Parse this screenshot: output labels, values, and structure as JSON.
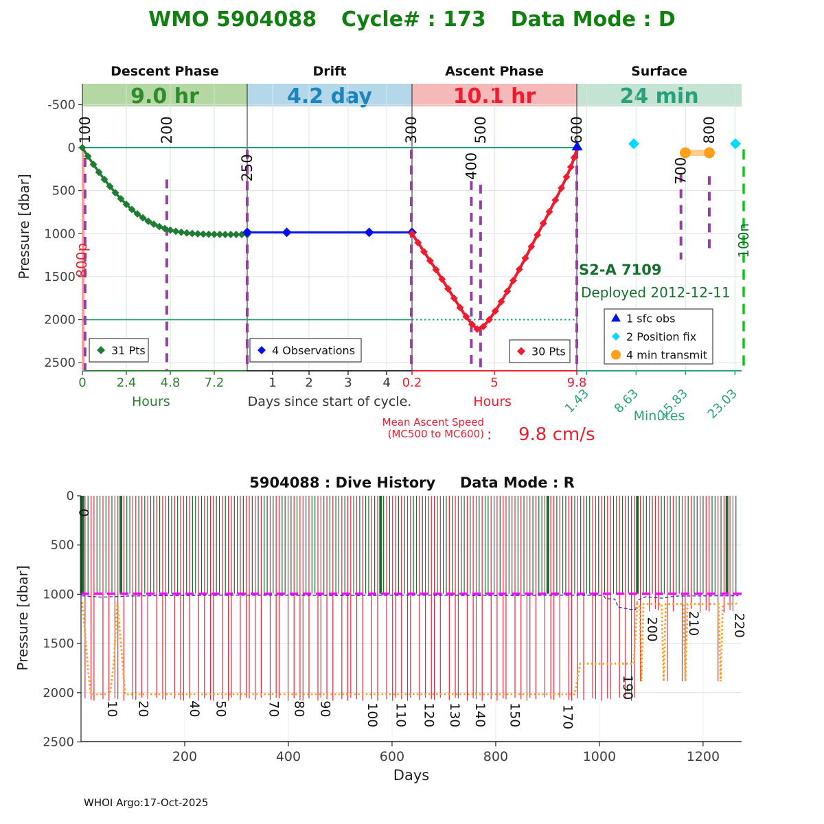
{
  "page": {
    "footer": "WHOI Argo:17-Oct-2025"
  },
  "colors": {
    "title_green": "#118011",
    "annotation_green": "#156f2e",
    "series_green": "#1e7d32",
    "series_blue": "#0010ee",
    "series_red": "#ee1c2e",
    "teal": "#27a27a",
    "teal_line": "#1a9e77",
    "purple": "#9440a0",
    "pink": "#ff9b9b",
    "orange": "#ff9f1c",
    "orange_band": "#ffd089",
    "cyan": "#00dcff",
    "magenta": "#ff00ff",
    "bright_green": "#00cc11",
    "grid": "#e0e0e0",
    "axis_text": "#404040",
    "hist_green": "#1a6b32",
    "hist_red": "#e8243c",
    "hist_blue": "#2233bb"
  },
  "chart_data": [
    {
      "type": "line",
      "title": "WMO 5904088   Cycle# : 173   Data Mode : D",
      "ylabel": "Pressure [dbar]",
      "ylim": [
        -750,
        2600
      ],
      "yticks": [
        -500,
        0,
        500,
        1000,
        1500,
        2000,
        2500
      ],
      "phases": [
        {
          "name": "Descent Phase",
          "duration": "9.0 hr",
          "band_color": "#b5d7a3",
          "text_color": "#2e8b2e",
          "axis_color": "#2e7d32",
          "grid_color": "#cfe6cf",
          "unit": "Hours",
          "unit_f": 0.104,
          "ticks": [
            {
              "f": 0,
              "l": "0"
            },
            {
              "f": 0.0667,
              "l": "2.4"
            },
            {
              "f": 0.1333,
              "l": "4.8"
            },
            {
              "f": 0.2,
              "l": "7.2"
            }
          ]
        },
        {
          "name": "Drift",
          "duration": "4.2 day",
          "band_color": "#b4d8ea",
          "text_color": "#1d85bd",
          "axis_color": "#333333",
          "grid_color": "#e4e4e4",
          "unit": "Days since start of cycle.",
          "unit_f": 0.375,
          "unit_color": "#333333",
          "ticks": [
            {
              "f": 0.2885,
              "l": "1"
            },
            {
              "f": 0.3438,
              "l": "2"
            },
            {
              "f": 0.4031,
              "l": "3"
            },
            {
              "f": 0.4615,
              "l": "4"
            }
          ]
        },
        {
          "name": "Ascent Phase",
          "duration": "10.1 hr",
          "band_color": "#f6b9b9",
          "text_color": "#ee1c2e",
          "axis_color": "#ee1c2e",
          "grid_color": "#f8cfcf",
          "unit": "Hours",
          "unit_f": 0.622,
          "ticks": [
            {
              "f": 0.5,
              "l": "0.2"
            },
            {
              "f": 0.625,
              "l": "5"
            },
            {
              "f": 0.75,
              "l": "9.8"
            }
          ]
        },
        {
          "name": "Surface",
          "duration": "24 min",
          "band_color": "#c4e3d2",
          "text_color": "#27a27a",
          "axis_color": "#27a27a",
          "grid_color": "#d2eadd",
          "unit": "Minutes",
          "unit_f": 0.875,
          "unit_y": 612,
          "rotate_ticks": true,
          "ticks": [
            {
              "f": 0.7649,
              "l": "1.43"
            },
            {
              "f": 0.8399,
              "l": "8.63"
            },
            {
              "f": 0.9149,
              "l": "15.83"
            },
            {
              "f": 0.9899,
              "l": "23.03"
            }
          ]
        }
      ],
      "series": {
        "descent": {
          "legend": "31 Pts",
          "color": "#1e7d32",
          "t_range": [
            0,
            9
          ],
          "f_range": [
            0,
            0.25
          ],
          "t": [
            0,
            0.3,
            0.6,
            0.9,
            1.2,
            1.5,
            1.8,
            2.1,
            2.4,
            2.7,
            3,
            3.3,
            3.6,
            3.9,
            4.2,
            4.5,
            4.8,
            5.1,
            5.4,
            5.7,
            6,
            6.3,
            6.6,
            6.9,
            7.2,
            7.5,
            7.8,
            8.1,
            8.4,
            8.7,
            9
          ],
          "p": [
            0,
            100,
            195,
            285,
            370,
            450,
            525,
            595,
            660,
            718,
            770,
            816,
            856,
            890,
            918,
            941,
            959,
            973,
            984,
            992,
            998,
            1002,
            1005,
            1007,
            1008,
            1009,
            1010,
            1010,
            1010,
            1010,
            1010
          ]
        },
        "drift": {
          "legend": "4 Observations",
          "color": "#0010ee",
          "f": [
            0.25,
            0.31,
            0.435,
            0.5
          ],
          "p": [
            985,
            985,
            985,
            985
          ]
        },
        "ascent": {
          "legend": "30 Pts",
          "color": "#ee1c2e",
          "t_range": [
            0.2,
            9.8
          ],
          "f_range": [
            0.5,
            0.75
          ],
          "t": [
            0.2,
            0.55,
            0.9,
            1.25,
            1.6,
            1.95,
            2.3,
            2.65,
            3,
            3.35,
            3.7,
            4,
            4.35,
            4.7,
            5.05,
            5.4,
            5.75,
            6.1,
            6.45,
            6.8,
            7.15,
            7.5,
            7.85,
            8.2,
            8.55,
            8.9,
            9.2,
            9.45,
            9.65,
            9.8
          ],
          "p": [
            1000,
            1105,
            1210,
            1315,
            1420,
            1530,
            1640,
            1750,
            1860,
            1965,
            2055,
            2110,
            2080,
            2000,
            1900,
            1790,
            1670,
            1545,
            1415,
            1285,
            1150,
            1015,
            880,
            745,
            610,
            470,
            340,
            225,
            115,
            15
          ]
        }
      },
      "surface_events": {
        "sfc_obs": {
          "label": "1 sfc obs",
          "color": "#0010ee",
          "minutes": [
            0.05
          ],
          "p": [
            -8
          ]
        },
        "position_fix": {
          "label": "2 Position fix",
          "color": "#00dcff",
          "minutes": [
            8.3,
            23.1
          ],
          "p": [
            -45,
            -45
          ]
        },
        "transmit": {
          "label": "4 min transmit",
          "color": "#ff9f1c",
          "band_color": "#ffd089",
          "minutes": [
            15.8,
            19.3
          ],
          "p": [
            60,
            60
          ]
        }
      },
      "mc_lines": [
        {
          "label": "100",
          "f": 0.004,
          "side": "above",
          "p1": 120,
          "p2": 2590
        },
        {
          "label": "200",
          "f": 0.128,
          "side": "above",
          "p1": 370,
          "p2": 2590
        },
        {
          "label": "250",
          "f": 0.25,
          "side": "below",
          "label_top": 75,
          "p1": 25,
          "p2": 2590
        },
        {
          "label": "300",
          "f": 0.499,
          "side": "above",
          "p1": 25,
          "p2": 2590
        },
        {
          "label": "400",
          "f": 0.59,
          "side": "below",
          "label_top": 55,
          "p1": 390,
          "p2": 2590
        },
        {
          "label": "500",
          "f": 0.604,
          "side": "above",
          "p1": 430,
          "p2": 2590
        },
        {
          "label": "600",
          "f": 0.75,
          "side": "above",
          "p1": 25,
          "p2": 2590
        },
        {
          "label": "700",
          "f": 0.908,
          "side": "below",
          "label_top": 110,
          "p1": 300,
          "p2": 1300
        },
        {
          "label": "800",
          "f": 0.951,
          "side": "above",
          "p1": 330,
          "p2": 1190
        }
      ],
      "rotated_notes": [
        {
          "text": "800p",
          "x": 126,
          "p": 1310,
          "color": "#ee1c2e",
          "size": 20
        },
        {
          "text": "100n",
          "x": 1090,
          "p": 1080,
          "color": "#156f2e",
          "size": 20
        }
      ],
      "annotations": [
        {
          "text": "S2-A 7109",
          "x": 843,
          "y": 400,
          "size": 21,
          "bold": true,
          "color": "#156f2e"
        },
        {
          "text": "Deployed 2012-12-11",
          "x": 846,
          "y": 433,
          "size": 20,
          "bold": false,
          "color": "#156f2e"
        }
      ],
      "mean_ascent": {
        "line1": "Mean Ascent Speed",
        "line2": "(MC500 to MC600)",
        "colon": ":",
        "value": "9.8 cm/s"
      },
      "legends": [
        {
          "x": 130,
          "y": 493,
          "w": 86,
          "h": 34,
          "items": [
            {
              "shape": "diamond",
              "color": "#1e7d32",
              "label": "31 Pts"
            }
          ]
        },
        {
          "x": 364,
          "y": 493,
          "w": 162,
          "h": 34,
          "items": [
            {
              "shape": "diamond",
              "color": "#0010ee",
              "label": "4 Observations"
            }
          ]
        },
        {
          "x": 742,
          "y": 495,
          "w": 88,
          "h": 33,
          "items": [
            {
              "shape": "diamond",
              "color": "#ee1c2e",
              "label": "30 Pts"
            }
          ]
        },
        {
          "x": 880,
          "y": 450,
          "w": 158,
          "h": 80,
          "items": [
            {
              "shape": "triangle",
              "color": "#0010ee",
              "label": "1 sfc obs"
            },
            {
              "shape": "diamond",
              "color": "#00dcff",
              "label": "2 Position fix"
            },
            {
              "shape": "circle",
              "color": "#ff9f1c",
              "label": "4 min transmit"
            }
          ]
        }
      ]
    },
    {
      "type": "line",
      "title": "5904088 : Dive History    Data Mode : R",
      "xlabel": "Days",
      "ylabel": "Pressure [dbar]",
      "xlim": [
        0,
        1275
      ],
      "ylim": [
        0,
        2500
      ],
      "xticks": [
        200,
        400,
        600,
        800,
        1000,
        1200
      ],
      "yticks": [
        0,
        500,
        1000,
        1500,
        2000,
        2500
      ],
      "cycles": {
        "day_start": 2,
        "day_step": 5.76,
        "green_depth": 995,
        "thick": [
          0,
          13,
          100,
          156,
          186,
          216
        ],
        "colors": "grgrrggrgrgrrgrggrrgrgrggrgrrggrgrrgrggrgrgrrggrgrrggrgrrgrgrggrgrrggrgrgrrgrggrrgrgrggrgrrgrgrggrgrggrgrrgrgrrggrgrgrrgrggrgrrggrgrrgrggrgrgrrggrgrgrrgrggrgrrgrggrrgrgrggrrgrgrrggrgrgrrgrggrgrrggrgrggrrgrggrgrrggrgrgrrg"
      },
      "red_rules": {
        "default_depth": 2050,
        "shallow_after_day": 1076,
        "shallow_depth": 1150,
        "deep_days": [
          1083,
          1127,
          1164,
          1233
        ],
        "deep_depth": 1885
      },
      "drift_line": {
        "pressure": 995
      },
      "park_line": {
        "points": [
          [
            2,
            1015
          ],
          [
            40,
            1030
          ],
          [
            90,
            1018
          ],
          [
            200,
            1012
          ],
          [
            350,
            1010
          ],
          [
            500,
            1013
          ],
          [
            650,
            1010
          ],
          [
            800,
            1013
          ],
          [
            950,
            1010
          ],
          [
            1008,
            1012
          ],
          [
            1012,
            1045
          ],
          [
            1030,
            1048
          ],
          [
            1036,
            1130
          ],
          [
            1060,
            1155
          ],
          [
            1070,
            1155
          ],
          [
            1074,
            1060
          ],
          [
            1090,
            1025
          ],
          [
            1120,
            1040
          ],
          [
            1150,
            1018
          ],
          [
            1268,
            1015
          ]
        ]
      },
      "profile_line": {
        "points": [
          [
            2,
            1080
          ],
          [
            8,
            1400
          ],
          [
            14,
            1800
          ],
          [
            19,
            2015
          ],
          [
            56,
            2015
          ],
          [
            63,
            1700
          ],
          [
            70,
            1085
          ],
          [
            77,
            1500
          ],
          [
            85,
            2015
          ],
          [
            952,
            2015
          ],
          [
            958,
            1860
          ],
          [
            963,
            1705
          ],
          [
            1066,
            1705
          ],
          [
            1070,
            1400
          ],
          [
            1073,
            1095
          ],
          [
            1078,
            1130
          ],
          [
            1081,
            1885
          ],
          [
            1085,
            1100
          ],
          [
            1120,
            1100
          ],
          [
            1124,
            1885
          ],
          [
            1128,
            1100
          ],
          [
            1162,
            1100
          ],
          [
            1166,
            1885
          ],
          [
            1170,
            1100
          ],
          [
            1230,
            1100
          ],
          [
            1234,
            1885
          ],
          [
            1238,
            1100
          ],
          [
            1268,
            1095
          ]
        ]
      },
      "cycle_labels": [
        {
          "t": "0",
          "day": 6,
          "p": 130
        },
        {
          "t": "10",
          "day": 61,
          "p": 2080
        },
        {
          "t": "20",
          "day": 121,
          "p": 2080
        },
        {
          "t": "40",
          "day": 220,
          "p": 2080
        },
        {
          "t": "50",
          "day": 271,
          "p": 2080
        },
        {
          "t": "70",
          "day": 373,
          "p": 2080
        },
        {
          "t": "80",
          "day": 422,
          "p": 2080
        },
        {
          "t": "90",
          "day": 472,
          "p": 2080
        },
        {
          "t": "100",
          "day": 563,
          "p": 2100
        },
        {
          "t": "110",
          "day": 618,
          "p": 2100
        },
        {
          "t": "120",
          "day": 672,
          "p": 2100
        },
        {
          "t": "130",
          "day": 722,
          "p": 2100
        },
        {
          "t": "140",
          "day": 771,
          "p": 2100
        },
        {
          "t": "150",
          "day": 838,
          "p": 2100
        },
        {
          "t": "170",
          "day": 940,
          "p": 2120
        },
        {
          "t": "190",
          "day": 1056,
          "p": 1820
        },
        {
          "t": "200",
          "day": 1103,
          "p": 1230
        },
        {
          "t": "210",
          "day": 1183,
          "p": 1170
        },
        {
          "t": "220",
          "day": 1271,
          "p": 1190
        }
      ]
    }
  ]
}
